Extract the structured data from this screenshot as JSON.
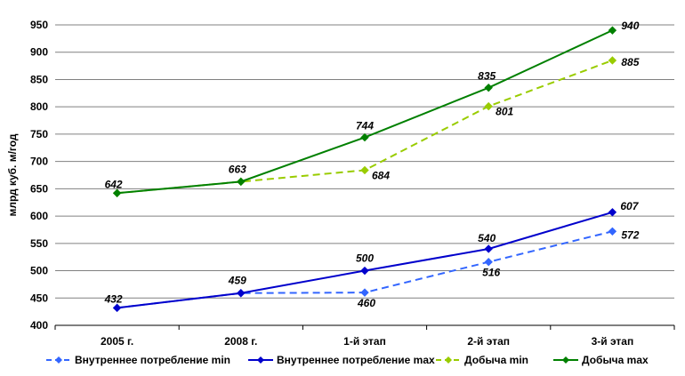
{
  "chart_data": {
    "type": "line",
    "categories": [
      "2005 г.",
      "2008 г.",
      "1-й этап",
      "2-й этап",
      "3-й этап"
    ],
    "ylabel": "млрд куб. м/год",
    "xlabel": "",
    "ylim": [
      400,
      950
    ],
    "ytick_step": 50,
    "grid": true,
    "legend": "bottom",
    "series": [
      {
        "name": "Внутреннее потребление min",
        "values": [
          432,
          459,
          460,
          516,
          572
        ],
        "color": "#3366ff",
        "dashed": true
      },
      {
        "name": "Внутреннее потребление max",
        "values": [
          432,
          459,
          500,
          540,
          607
        ],
        "color": "#0000cc",
        "dashed": false
      },
      {
        "name": "Добыча min",
        "values": [
          642,
          663,
          684,
          801,
          885
        ],
        "color": "#99cc00",
        "dashed": true
      },
      {
        "name": "Добыча max",
        "values": [
          642,
          663,
          744,
          835,
          940
        ],
        "color": "#008000",
        "dashed": false
      }
    ],
    "data_labels": [
      {
        "text": "432",
        "value": 432,
        "cat": 0
      },
      {
        "text": "459",
        "value": 459,
        "cat": 1
      },
      {
        "text": "460",
        "value": 460,
        "cat": 2
      },
      {
        "text": "500",
        "value": 500,
        "cat": 2
      },
      {
        "text": "516",
        "value": 516,
        "cat": 3
      },
      {
        "text": "540",
        "value": 540,
        "cat": 3
      },
      {
        "text": "572",
        "value": 572,
        "cat": 4
      },
      {
        "text": "607",
        "value": 607,
        "cat": 4
      },
      {
        "text": "642",
        "value": 642,
        "cat": 0
      },
      {
        "text": "663",
        "value": 663,
        "cat": 1
      },
      {
        "text": "684",
        "value": 684,
        "cat": 2
      },
      {
        "text": "744",
        "value": 744,
        "cat": 2
      },
      {
        "text": "801",
        "value": 801,
        "cat": 3
      },
      {
        "text": "835",
        "value": 835,
        "cat": 3
      },
      {
        "text": "885",
        "value": 885,
        "cat": 4
      },
      {
        "text": "940",
        "value": 940,
        "cat": 4
      }
    ]
  }
}
